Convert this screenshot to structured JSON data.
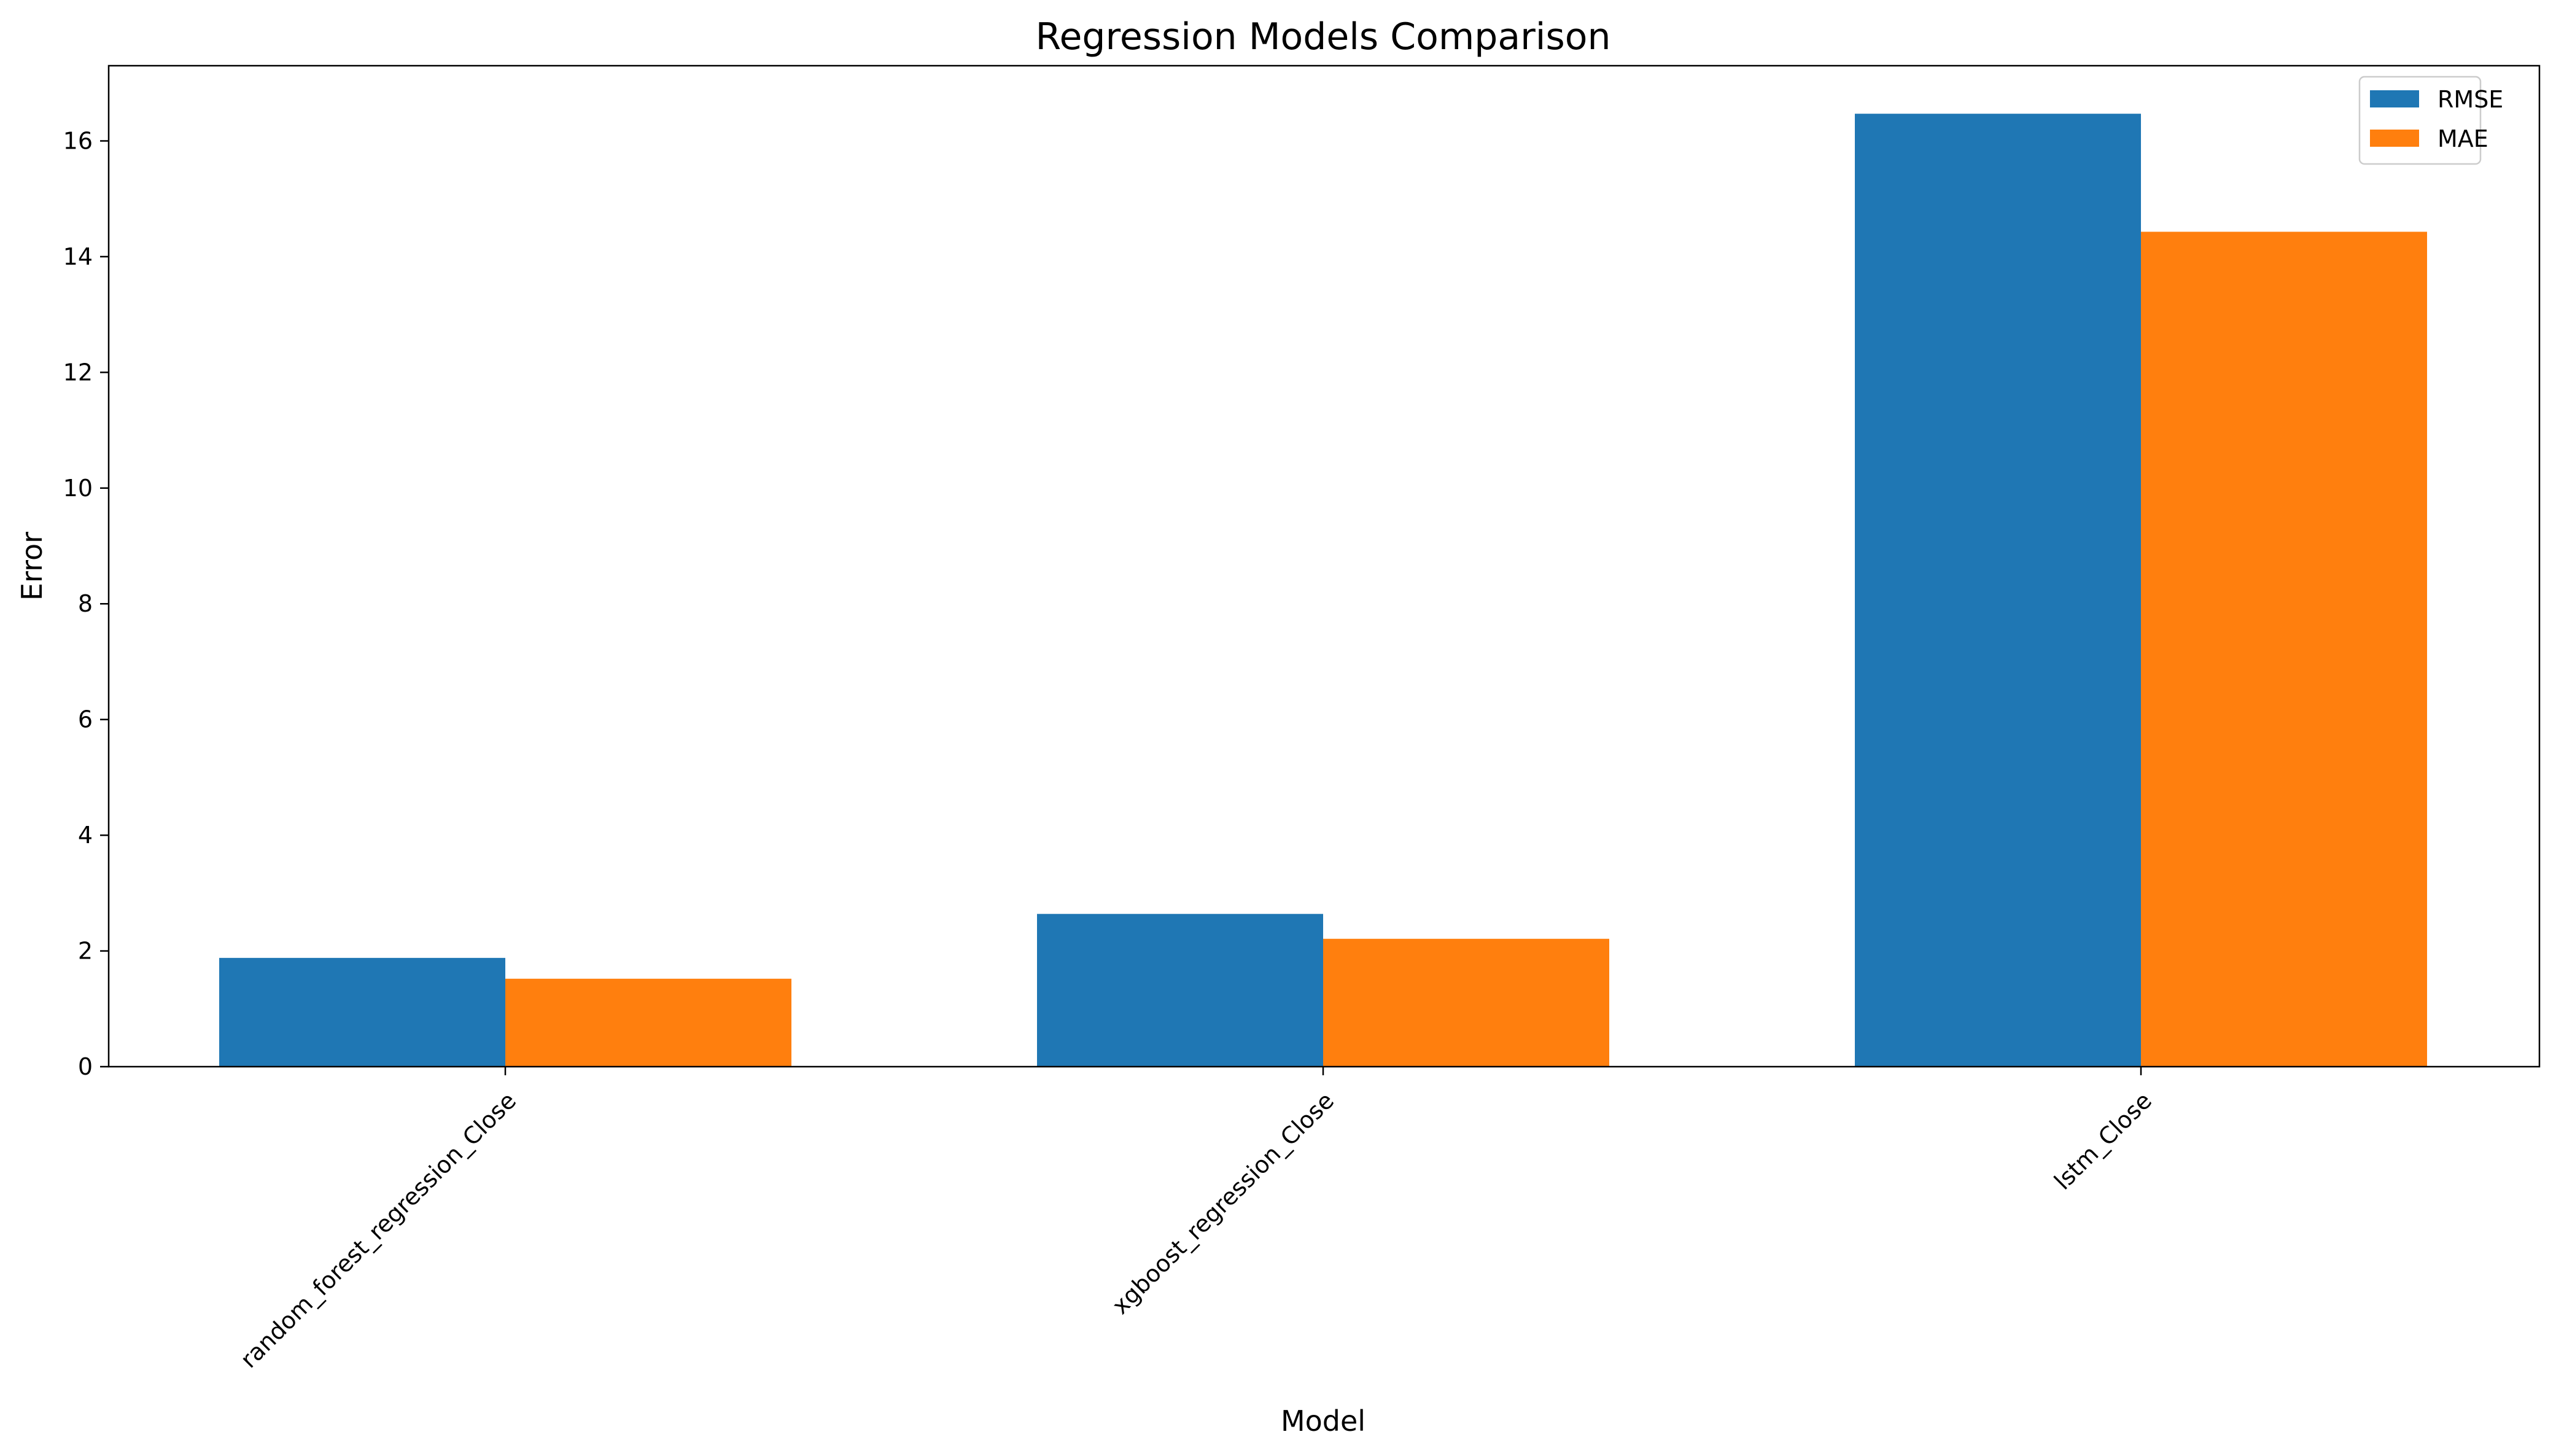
{
  "chart_data": {
    "type": "bar",
    "title": "Regression Models Comparison",
    "xlabel": "Model",
    "ylabel": "Error",
    "categories": [
      "random_forest_regression_Close",
      "xgboost_regression_Close",
      "lstm_Close"
    ],
    "series": [
      {
        "name": "RMSE",
        "values": [
          1.88,
          2.64,
          16.47
        ],
        "color": "#1f77b4"
      },
      {
        "name": "MAE",
        "values": [
          1.52,
          2.21,
          14.43
        ],
        "color": "#ff7f0e"
      }
    ],
    "ylim": [
      0,
      17.3
    ],
    "yticks": [
      0,
      2,
      4,
      6,
      8,
      10,
      12,
      14,
      16
    ],
    "ytick_labels": [
      "0",
      "2",
      "4",
      "6",
      "8",
      "10",
      "12",
      "14",
      "16"
    ],
    "grid": false,
    "legend_position": "top-right"
  }
}
